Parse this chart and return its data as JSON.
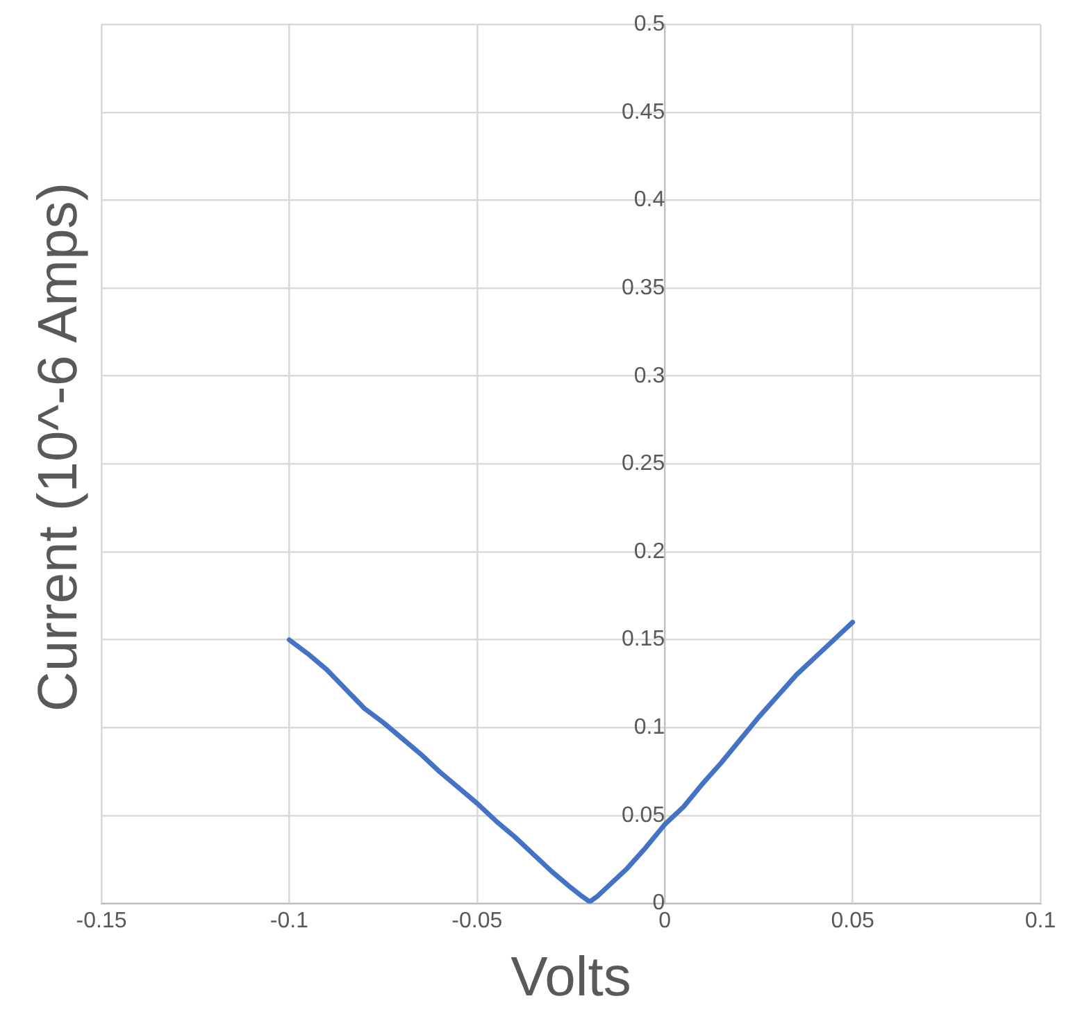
{
  "chart_data": {
    "type": "line",
    "xlabel": "Volts",
    "ylabel": "Current (10^-6 Amps)",
    "x": [
      -0.1,
      -0.095,
      -0.09,
      -0.085,
      -0.08,
      -0.075,
      -0.07,
      -0.065,
      -0.06,
      -0.055,
      -0.05,
      -0.045,
      -0.04,
      -0.035,
      -0.03,
      -0.025,
      -0.022,
      -0.02,
      -0.018,
      -0.015,
      -0.01,
      -0.005,
      0,
      0.005,
      0.01,
      0.015,
      0.02,
      0.025,
      0.03,
      0.035,
      0.04,
      0.045,
      0.05
    ],
    "series": [
      {
        "color": "#4472c4",
        "values": [
          0.15,
          0.142,
          0.133,
          0.122,
          0.111,
          0.103,
          0.094,
          0.085,
          0.075,
          0.066,
          0.057,
          0.047,
          0.038,
          0.028,
          0.018,
          0.009,
          0.004,
          0.001,
          0.004,
          0.01,
          0.02,
          0.032,
          0.045,
          0.055,
          0.068,
          0.08,
          0.093,
          0.106,
          0.118,
          0.13,
          0.14,
          0.15,
          0.16
        ]
      }
    ],
    "xlim": [
      -0.15,
      0.1
    ],
    "xticks": [
      -0.15,
      -0.1,
      -0.05,
      0,
      0.05,
      0.1
    ],
    "ylim": [
      0,
      0.5
    ],
    "yticks": [
      0,
      0.05,
      0.1,
      0.15,
      0.2,
      0.25,
      0.3,
      0.35,
      0.4,
      0.45,
      0.5
    ],
    "grid": true,
    "legend": false,
    "marker": "none",
    "line_style": "solid"
  }
}
